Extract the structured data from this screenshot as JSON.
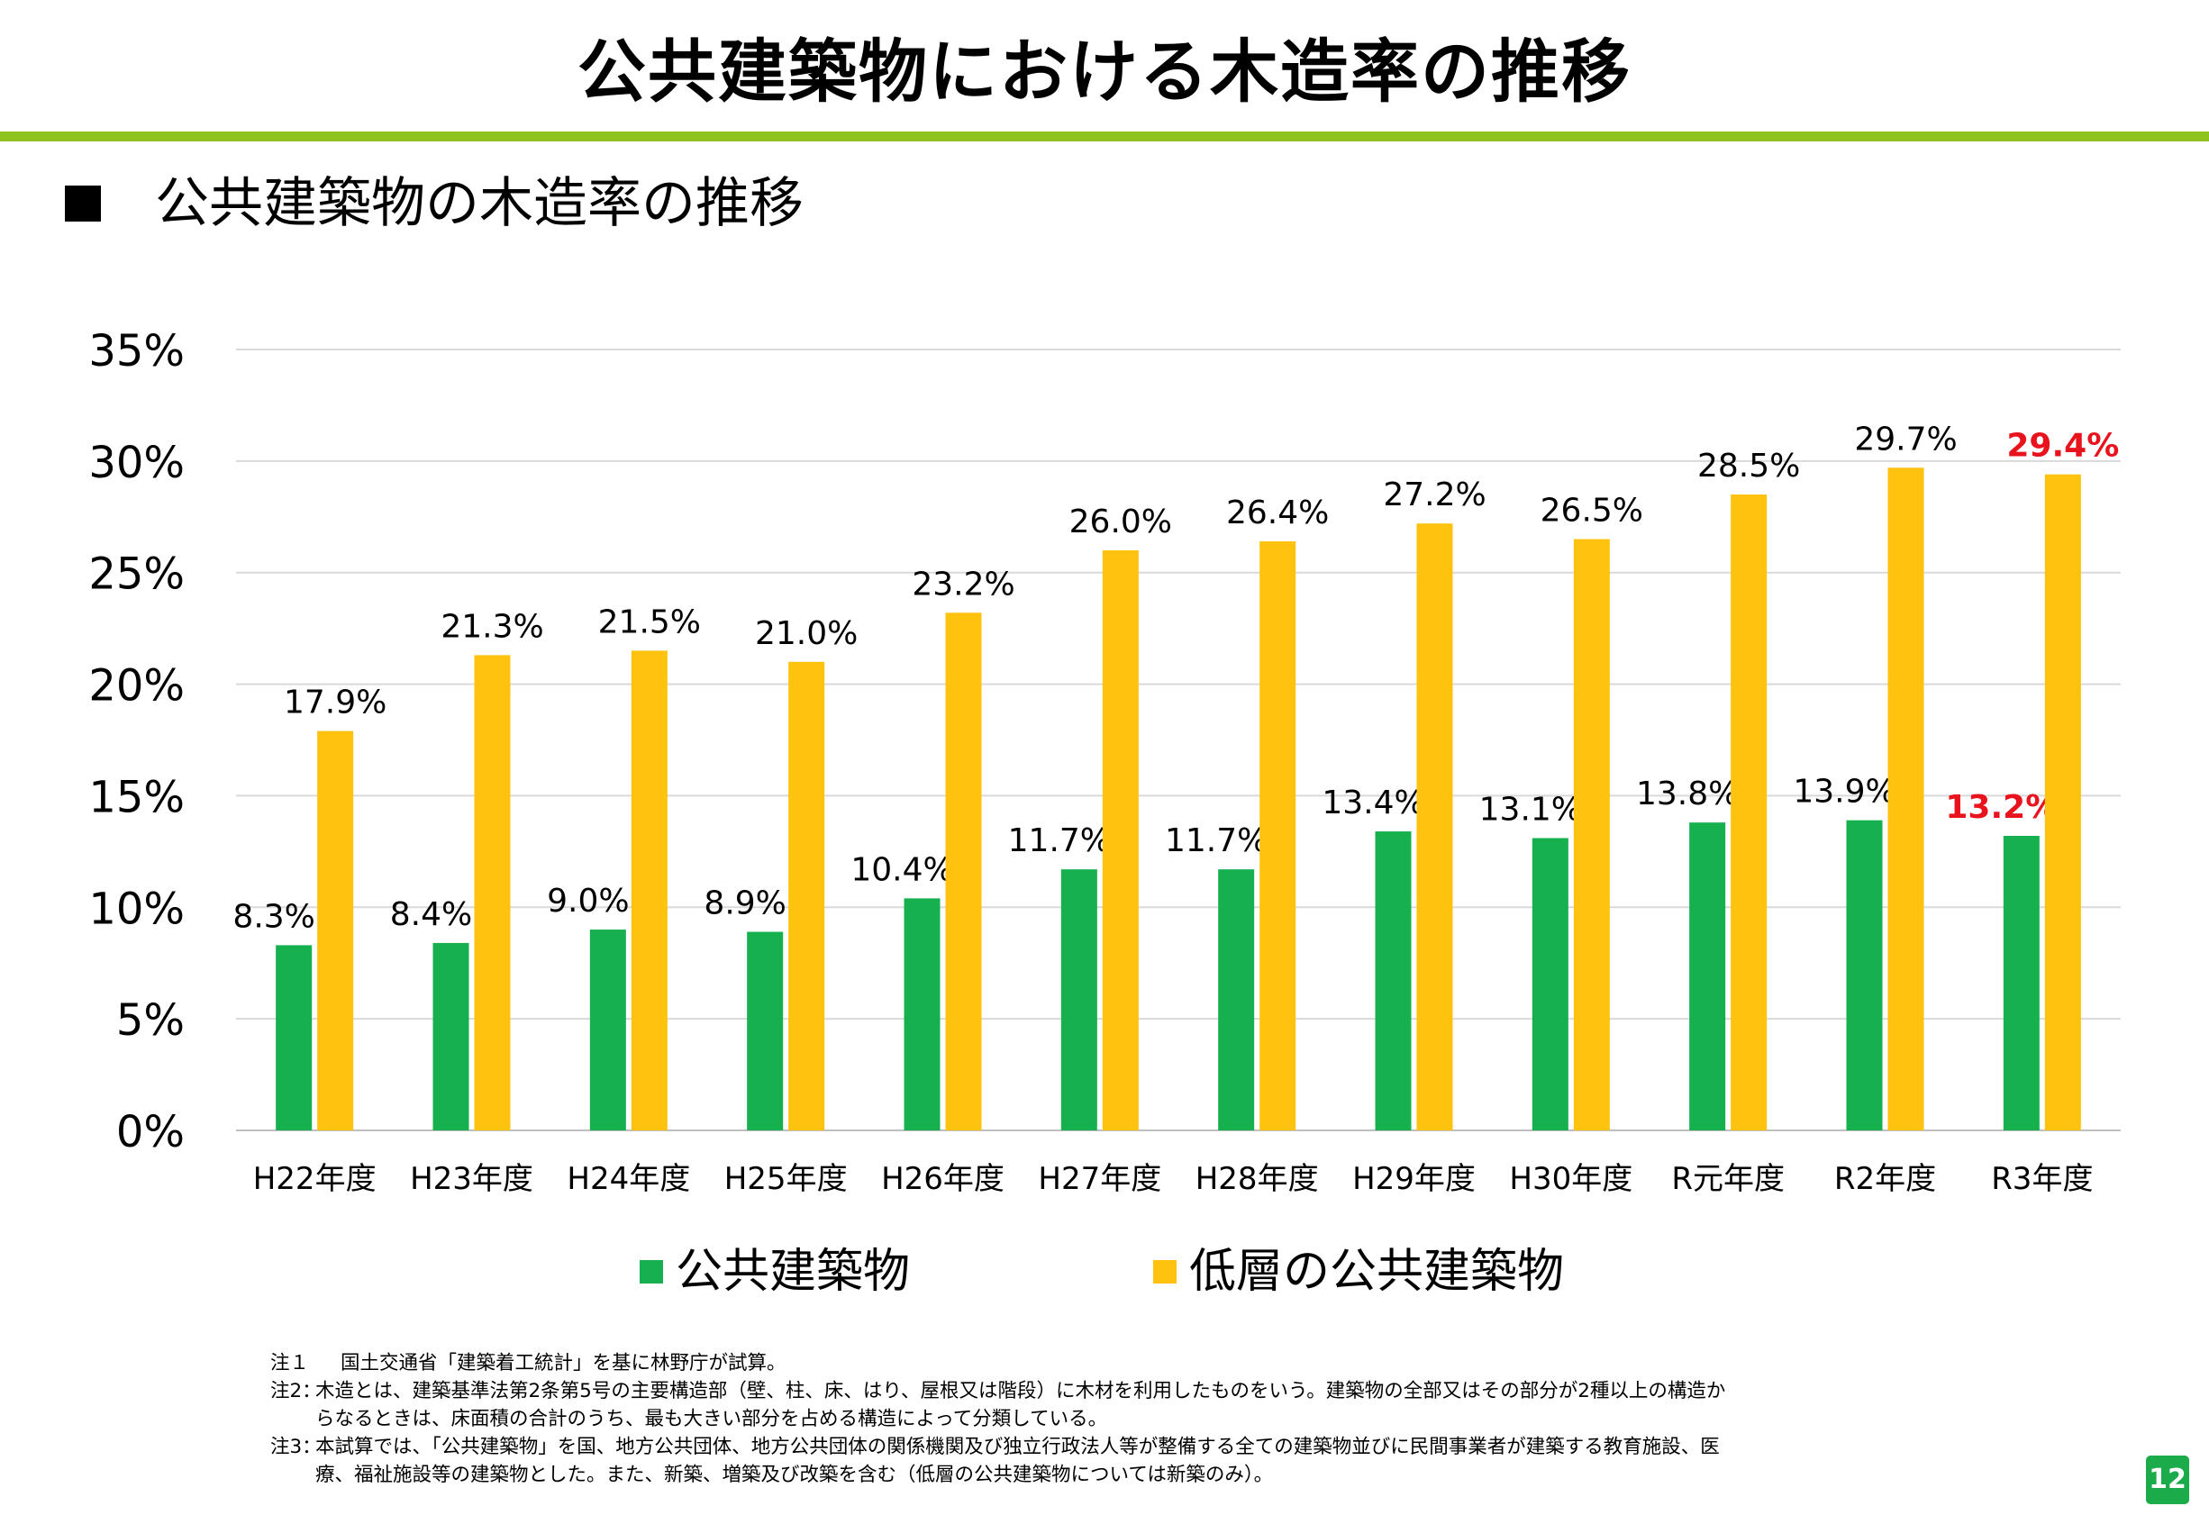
{
  "slide": {
    "title": "公共建築物における木造率の推移",
    "section_heading": "公共建築物の木造率の推移",
    "page_number": "12"
  },
  "chart_data": {
    "type": "bar",
    "title": "",
    "xlabel": "",
    "ylabel": "",
    "ylim": [
      0,
      35
    ],
    "y_ticks": [
      0,
      5,
      10,
      15,
      20,
      25,
      30,
      35
    ],
    "y_tick_labels": [
      "0%",
      "5%",
      "10%",
      "15%",
      "20%",
      "25%",
      "30%",
      "35%"
    ],
    "grid": true,
    "legend_position": "bottom",
    "categories": [
      "H22年度",
      "H23年度",
      "H24年度",
      "H25年度",
      "H26年度",
      "H27年度",
      "H28年度",
      "H29年度",
      "H30年度",
      "R元年度",
      "R2年度",
      "R3年度"
    ],
    "series": [
      {
        "name": "公共建築物",
        "color": "#17b04e",
        "values": [
          8.3,
          8.4,
          9.0,
          8.9,
          10.4,
          11.7,
          11.7,
          13.4,
          13.1,
          13.8,
          13.9,
          13.2
        ],
        "labels": [
          "8.3%",
          "8.4%",
          "9.0%",
          "8.9%",
          "10.4%",
          "11.7%",
          "11.7%",
          "13.4%",
          "13.1%",
          "13.8%",
          "13.9%",
          "13.2%"
        ]
      },
      {
        "name": "低層の公共建築物",
        "color": "#ffc20e",
        "values": [
          17.9,
          21.3,
          21.5,
          21.0,
          23.2,
          26.0,
          26.4,
          27.2,
          26.5,
          28.5,
          29.7,
          29.4
        ],
        "labels": [
          "17.9%",
          "21.3%",
          "21.5%",
          "21.0%",
          "23.2%",
          "26.0%",
          "26.4%",
          "27.2%",
          "26.5%",
          "28.5%",
          "29.7%",
          "29.4%"
        ]
      }
    ],
    "highlight": {
      "category_index": 11,
      "label_color": "#e8131d"
    }
  },
  "notes": [
    {
      "label": "注１",
      "text": "国土交通省「建築着工統計」を基に林野庁が試算。"
    },
    {
      "label": "注2：",
      "text": "木造とは、建築基準法第2条第5号の主要構造部（壁、柱、床、はり、屋根又は階段）に木材を利用したものをいう。建築物の全部又はその部分が2種以上の構造からなるときは、床面積の合計のうち、最も大きい部分を占める構造によって分類している。"
    },
    {
      "label": "注3：",
      "text": "本試算では、「公共建築物」を国、地方公共団体、地方公共団体の関係機関及び独立行政法人等が整備する全ての建築物並びに民間事業者が建築する教育施設、医療、福祉施設等の建築物とした。また、新築、増築及び改築を含む（低層の公共建築物については新築のみ）。"
    }
  ]
}
